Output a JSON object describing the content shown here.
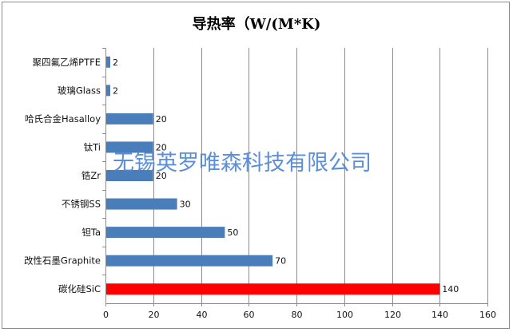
{
  "chart_data": {
    "type": "bar",
    "orientation": "horizontal",
    "title": "导热率（W/(M*K)",
    "xlabel": "",
    "ylabel": "",
    "categories": [
      "聚四氟乙烯PTFE",
      "玻璃Glass",
      "哈氏合金Hasalloy",
      "钛Ti",
      "锆Zr",
      "不锈钢SS",
      "钽Ta",
      "改性石墨Graphite",
      "碳化硅SiC"
    ],
    "values": [
      2,
      2,
      20,
      20,
      20,
      30,
      50,
      70,
      140
    ],
    "data_labels": [
      "2",
      "2",
      "20",
      "20",
      "20",
      "30",
      "50",
      "70",
      "140"
    ],
    "xlim": [
      0,
      160
    ],
    "xticks": [
      "0",
      "20",
      "40",
      "60",
      "80",
      "100",
      "120",
      "140",
      "160"
    ],
    "grid": "vertical",
    "legend": "none",
    "colors": {
      "bar_default": "#4a7ebb",
      "bar_highlight": "#ff0000",
      "highlight_category": "碳化硅SiC",
      "gridline": "#8c8c8c",
      "watermark": "#4f86d6"
    }
  },
  "watermark": {
    "text": "无锡英罗唯森科技有限公司"
  }
}
